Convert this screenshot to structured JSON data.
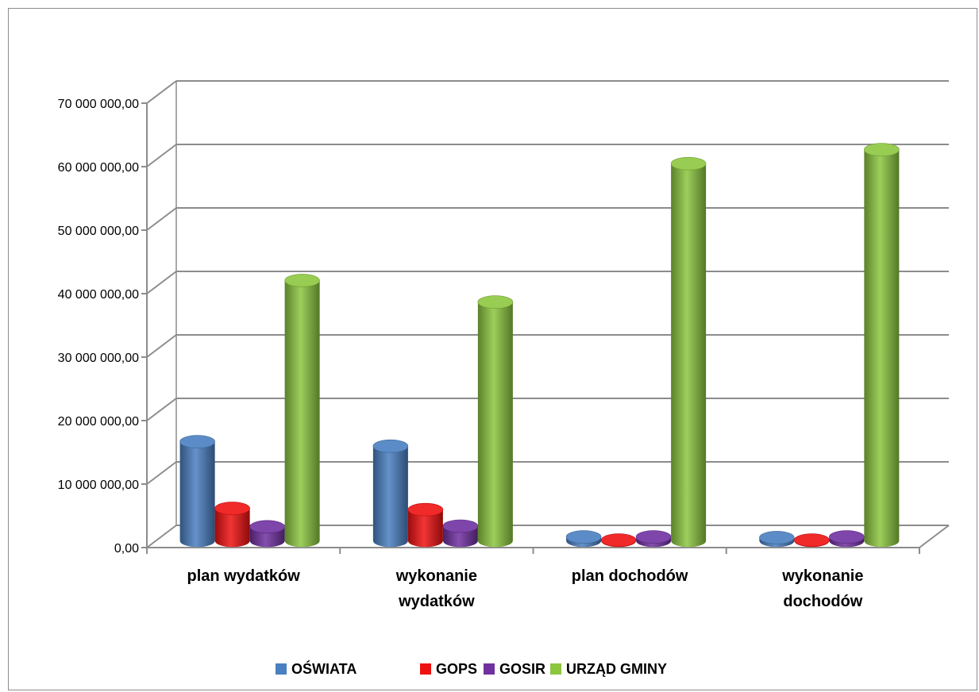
{
  "chart_data": {
    "type": "bar",
    "title": "",
    "xlabel": "",
    "ylabel": "",
    "ylim": [
      0,
      70000000
    ],
    "yticks": [
      0,
      10000000,
      20000000,
      30000000,
      40000000,
      50000000,
      60000000,
      70000000
    ],
    "ytick_labels": [
      "0,00",
      "10 000 000,00",
      "20 000 000,00",
      "30 000 000,00",
      "40 000 000,00",
      "50 000 000,00",
      "60 000 000,00",
      "70 000 000,00"
    ],
    "categories": [
      [
        "plan wydatków"
      ],
      [
        "wykonanie",
        "wydatków"
      ],
      [
        "plan dochodów"
      ],
      [
        "wykonanie",
        "dochodów"
      ]
    ],
    "series": [
      {
        "name": "OŚWIATA",
        "color": "#4a7fc1",
        "values": [
          15600000,
          14900000,
          600000,
          500000
        ]
      },
      {
        "name": "GOPS",
        "color": "#ee1111",
        "values": [
          5100000,
          4900000,
          100000,
          100000
        ]
      },
      {
        "name": "GOSIR",
        "color": "#7030a0",
        "values": [
          2200000,
          2300000,
          600000,
          600000
        ]
      },
      {
        "name": "URZĄD GMINY",
        "color": "#8cc63f",
        "values": [
          41000000,
          37600000,
          59400000,
          61600000
        ]
      }
    ],
    "grid": true,
    "legend": "bottom",
    "style": "3d-cylinder"
  }
}
